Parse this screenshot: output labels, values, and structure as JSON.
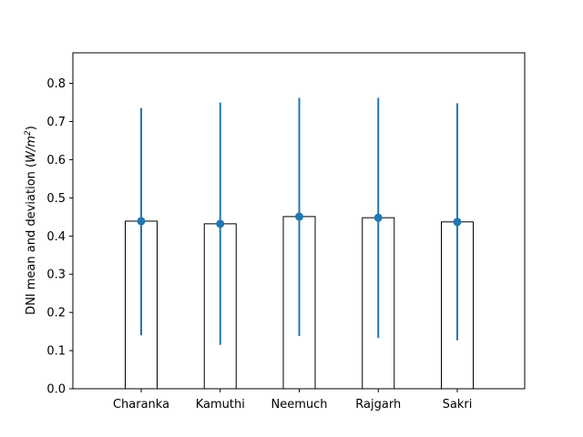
{
  "chart_data": {
    "type": "bar",
    "categories": [
      "Charanka",
      "Kamuthi",
      "Neemuch",
      "Rajgarh",
      "Sakri"
    ],
    "values": [
      0.439,
      0.432,
      0.451,
      0.448,
      0.437
    ],
    "errors": {
      "lower": [
        0.14,
        0.115,
        0.138,
        0.133,
        0.127
      ],
      "upper": [
        0.735,
        0.75,
        0.762,
        0.762,
        0.748
      ]
    },
    "title": "",
    "xlabel": "",
    "ylabel_prefix": "DNI mean and deviation (",
    "ylabel_unit_base": "W/m",
    "ylabel_unit_exp": "2",
    "ylabel_suffix": ")",
    "ylim": [
      0.0,
      0.88
    ],
    "yticks": [
      "0.0",
      "0.1",
      "0.2",
      "0.3",
      "0.4",
      "0.5",
      "0.6",
      "0.7",
      "0.8"
    ],
    "grid": false,
    "legend": "none",
    "bar_fill": "#ffffff",
    "bar_edge": "#000000",
    "marker_color": "#1f77b4"
  }
}
